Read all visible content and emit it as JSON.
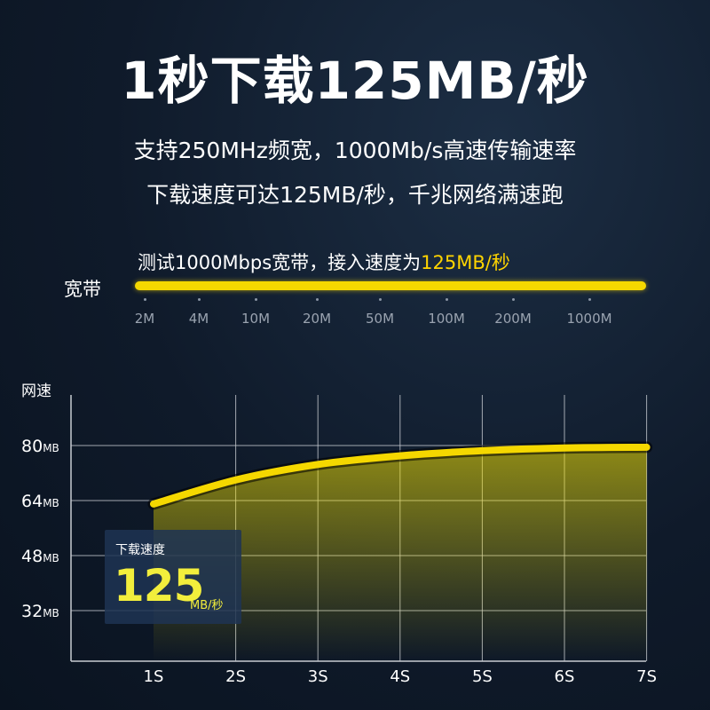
{
  "headline": "1秒下载125MB/秒",
  "subtitle_line1": "支持250MHz频宽，1000Mb/s高速传输速率",
  "subtitle_line2": "下载速度可达125MB/秒，千兆网络满速跑",
  "bandwidth": {
    "caption_prefix": "测试1000Mbps宽带，接入速度为",
    "caption_highlight": "125MB/秒",
    "label": "宽带",
    "ticks": [
      "2M",
      "4M",
      "10M",
      "20M",
      "50M",
      "100M",
      "200M",
      "1000M"
    ]
  },
  "speed_box": {
    "label": "下载速度",
    "value": "125",
    "unit": "MB/秒"
  },
  "colors": {
    "accent": "#f5d800",
    "background": "#0f1a2a",
    "grid": "#c8ccd2"
  },
  "chart_data": {
    "type": "area",
    "ylabel": "网速",
    "xlabel": "",
    "categories": [
      "1S",
      "2S",
      "3S",
      "4S",
      "5S",
      "6S",
      "7S"
    ],
    "y_ticks": [
      "80MB",
      "64MB",
      "48MB",
      "32MB"
    ],
    "y_tick_values": [
      80,
      64,
      48,
      32
    ],
    "ylim": [
      16,
      80
    ],
    "series": [
      {
        "values": [
          63,
          70,
          74.5,
          77,
          78.5,
          79.3,
          79.5
        ]
      }
    ],
    "grid": true
  }
}
